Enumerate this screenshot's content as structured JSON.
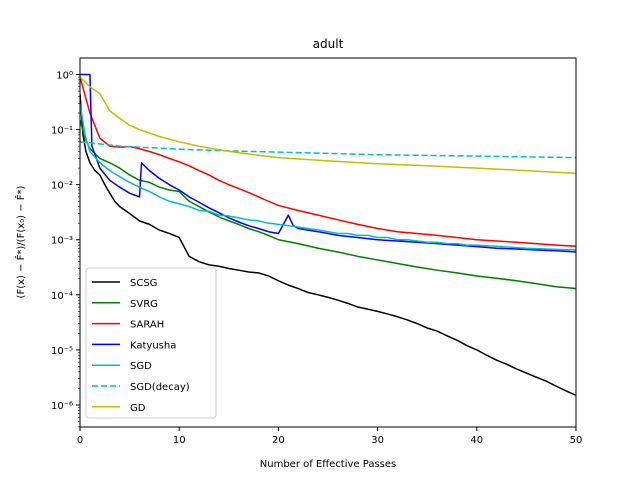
{
  "chart_data": {
    "type": "line",
    "title": "adult",
    "xlabel": "Number of Effective Passes",
    "ylabel": "(F(x) − F̂*)/(F(x₀) − F̂*)",
    "xlim": [
      0,
      50
    ],
    "ylim_log10": [
      -6.4,
      0.3
    ],
    "yscale": "log",
    "x_ticks": [
      0,
      10,
      20,
      30,
      40,
      50
    ],
    "x_tick_labels": [
      "0",
      "10",
      "20",
      "30",
      "40",
      "50"
    ],
    "y_ticks_log10": [
      -6,
      -5,
      -4,
      -3,
      -2,
      -1,
      0
    ],
    "y_tick_labels": [
      "10⁻⁶",
      "10⁻⁵",
      "10⁻⁴",
      "10⁻³",
      "10⁻²",
      "10⁻¹",
      "10⁰"
    ],
    "legend_position": "lower-left",
    "series": [
      {
        "name": "SCSG",
        "color": "#000000",
        "dash": "solid",
        "points": [
          [
            0,
            0.45
          ],
          [
            0.3,
            0.08
          ],
          [
            0.6,
            0.04
          ],
          [
            1,
            0.025
          ],
          [
            1.5,
            0.018
          ],
          [
            2,
            0.015
          ],
          [
            2.5,
            0.01
          ],
          [
            3,
            0.007
          ],
          [
            3.5,
            0.005
          ],
          [
            4,
            0.004
          ],
          [
            5,
            0.003
          ],
          [
            6,
            0.0022
          ],
          [
            7,
            0.0019
          ],
          [
            8,
            0.0015
          ],
          [
            9,
            0.0013
          ],
          [
            10,
            0.0011
          ],
          [
            11,
            0.0005
          ],
          [
            12,
            0.0004
          ],
          [
            13,
            0.00035
          ],
          [
            14,
            0.00033
          ],
          [
            15,
            0.0003
          ],
          [
            16,
            0.00028
          ],
          [
            17,
            0.00026
          ],
          [
            18,
            0.00025
          ],
          [
            19,
            0.00022
          ],
          [
            20,
            0.00018
          ],
          [
            21,
            0.00015
          ],
          [
            22,
            0.00013
          ],
          [
            23,
            0.00011
          ],
          [
            24,
            0.0001
          ],
          [
            25,
            9e-05
          ],
          [
            26,
            8e-05
          ],
          [
            27,
            7e-05
          ],
          [
            28,
            6e-05
          ],
          [
            29,
            5.5e-05
          ],
          [
            30,
            5e-05
          ],
          [
            31,
            4.5e-05
          ],
          [
            32,
            4e-05
          ],
          [
            33,
            3.5e-05
          ],
          [
            34,
            3e-05
          ],
          [
            35,
            2.5e-05
          ],
          [
            36,
            2.2e-05
          ],
          [
            37,
            1.8e-05
          ],
          [
            38,
            1.5e-05
          ],
          [
            39,
            1.2e-05
          ],
          [
            40,
            1e-05
          ],
          [
            41,
            8e-06
          ],
          [
            42,
            6.5e-06
          ],
          [
            43,
            5.5e-06
          ],
          [
            44,
            4.5e-06
          ],
          [
            45,
            3.8e-06
          ],
          [
            46,
            3.2e-06
          ],
          [
            47,
            2.7e-06
          ],
          [
            48,
            2.2e-06
          ],
          [
            49,
            1.8e-06
          ],
          [
            50,
            1.5e-06
          ]
        ]
      },
      {
        "name": "SVRG",
        "color": "#008000",
        "dash": "solid",
        "points": [
          [
            0,
            0.15
          ],
          [
            0.5,
            0.07
          ],
          [
            1,
            0.045
          ],
          [
            2,
            0.03
          ],
          [
            3,
            0.025
          ],
          [
            4,
            0.02
          ],
          [
            5,
            0.015
          ],
          [
            6,
            0.012
          ],
          [
            7,
            0.011
          ],
          [
            8,
            0.009
          ],
          [
            9,
            0.008
          ],
          [
            10,
            0.0075
          ],
          [
            11,
            0.005
          ],
          [
            12,
            0.004
          ],
          [
            13,
            0.0032
          ],
          [
            14,
            0.0026
          ],
          [
            15,
            0.0022
          ],
          [
            16,
            0.0019
          ],
          [
            17,
            0.0016
          ],
          [
            18,
            0.0014
          ],
          [
            19,
            0.0012
          ],
          [
            20,
            0.001
          ],
          [
            22,
            0.00085
          ],
          [
            24,
            0.0007
          ],
          [
            26,
            0.0006
          ],
          [
            28,
            0.0005
          ],
          [
            30,
            0.00043
          ],
          [
            32,
            0.00037
          ],
          [
            34,
            0.00032
          ],
          [
            36,
            0.00028
          ],
          [
            38,
            0.00025
          ],
          [
            40,
            0.00022
          ],
          [
            42,
            0.0002
          ],
          [
            44,
            0.00018
          ],
          [
            46,
            0.00016
          ],
          [
            48,
            0.00014
          ],
          [
            50,
            0.00013
          ]
        ]
      },
      {
        "name": "SARAH",
        "color": "#ff0000",
        "dash": "solid",
        "points": [
          [
            0,
            0.9
          ],
          [
            1,
            0.2
          ],
          [
            2,
            0.07
          ],
          [
            3,
            0.05
          ],
          [
            4,
            0.048
          ],
          [
            5,
            0.049
          ],
          [
            6,
            0.045
          ],
          [
            7,
            0.04
          ],
          [
            8,
            0.035
          ],
          [
            9,
            0.03
          ],
          [
            10,
            0.026
          ],
          [
            11,
            0.022
          ],
          [
            12,
            0.018
          ],
          [
            13,
            0.015
          ],
          [
            14,
            0.012
          ],
          [
            15,
            0.01
          ],
          [
            16,
            0.0085
          ],
          [
            17,
            0.0072
          ],
          [
            18,
            0.006
          ],
          [
            19,
            0.005
          ],
          [
            20,
            0.0042
          ],
          [
            22,
            0.0034
          ],
          [
            24,
            0.0028
          ],
          [
            26,
            0.0023
          ],
          [
            28,
            0.0019
          ],
          [
            30,
            0.0016
          ],
          [
            32,
            0.0014
          ],
          [
            34,
            0.0013
          ],
          [
            36,
            0.0012
          ],
          [
            38,
            0.0011
          ],
          [
            40,
            0.001
          ],
          [
            42,
            0.00095
          ],
          [
            44,
            0.0009
          ],
          [
            46,
            0.00085
          ],
          [
            48,
            0.0008
          ],
          [
            50,
            0.00076
          ]
        ]
      },
      {
        "name": "Katyusha",
        "color": "#0000ff",
        "dash": "solid",
        "points": [
          [
            0,
            1
          ],
          [
            1,
            1
          ],
          [
            1.2,
            0.05
          ],
          [
            2,
            0.02
          ],
          [
            3,
            0.012
          ],
          [
            4,
            0.009
          ],
          [
            5,
            0.007
          ],
          [
            6,
            0.006
          ],
          [
            6.2,
            0.025
          ],
          [
            7,
            0.018
          ],
          [
            8,
            0.013
          ],
          [
            9,
            0.01
          ],
          [
            10,
            0.008
          ],
          [
            11,
            0.006
          ],
          [
            12,
            0.0048
          ],
          [
            13,
            0.0038
          ],
          [
            14,
            0.0031
          ],
          [
            15,
            0.0025
          ],
          [
            16,
            0.0021
          ],
          [
            17,
            0.0018
          ],
          [
            18,
            0.0016
          ],
          [
            19,
            0.0014
          ],
          [
            20,
            0.0013
          ],
          [
            21,
            0.0028
          ],
          [
            21.5,
            0.0018
          ],
          [
            22,
            0.0016
          ],
          [
            24,
            0.0014
          ],
          [
            26,
            0.0012
          ],
          [
            28,
            0.0011
          ],
          [
            30,
            0.001
          ],
          [
            32,
            0.00095
          ],
          [
            34,
            0.0009
          ],
          [
            36,
            0.00085
          ],
          [
            38,
            0.0008
          ],
          [
            40,
            0.00075
          ],
          [
            42,
            0.0007
          ],
          [
            44,
            0.00068
          ],
          [
            46,
            0.00065
          ],
          [
            48,
            0.00063
          ],
          [
            50,
            0.0006
          ]
        ]
      },
      {
        "name": "SGD",
        "color": "#00bfbf",
        "dash": "solid",
        "points": [
          [
            0,
            0.3
          ],
          [
            0.5,
            0.08
          ],
          [
            1,
            0.04
          ],
          [
            2,
            0.025
          ],
          [
            3,
            0.018
          ],
          [
            4,
            0.014
          ],
          [
            5,
            0.011
          ],
          [
            6,
            0.009
          ],
          [
            7,
            0.0075
          ],
          [
            8,
            0.006
          ],
          [
            9,
            0.005
          ],
          [
            10,
            0.0045
          ],
          [
            11,
            0.004
          ],
          [
            12,
            0.0034
          ],
          [
            13,
            0.0033
          ],
          [
            14,
            0.0028
          ],
          [
            15,
            0.0027
          ],
          [
            16,
            0.0025
          ],
          [
            17,
            0.0023
          ],
          [
            18,
            0.0022
          ],
          [
            19,
            0.002
          ],
          [
            20,
            0.0019
          ],
          [
            21,
            0.0018
          ],
          [
            22,
            0.0017
          ],
          [
            23,
            0.0016
          ],
          [
            24,
            0.0015
          ],
          [
            25,
            0.0014
          ],
          [
            26,
            0.0013
          ],
          [
            27,
            0.0013
          ],
          [
            28,
            0.0012
          ],
          [
            29,
            0.0012
          ],
          [
            30,
            0.0011
          ],
          [
            31,
            0.0011
          ],
          [
            32,
            0.001
          ],
          [
            33,
            0.001
          ],
          [
            34,
            0.00095
          ],
          [
            35,
            0.0009
          ],
          [
            36,
            0.0009
          ],
          [
            37,
            0.00085
          ],
          [
            38,
            0.00085
          ],
          [
            39,
            0.0008
          ],
          [
            40,
            0.0008
          ],
          [
            41,
            0.00078
          ],
          [
            42,
            0.00076
          ],
          [
            43,
            0.00074
          ],
          [
            44,
            0.00072
          ],
          [
            45,
            0.0007
          ],
          [
            46,
            0.00069
          ],
          [
            47,
            0.00068
          ],
          [
            48,
            0.00067
          ],
          [
            49,
            0.00066
          ],
          [
            50,
            0.00065
          ]
        ]
      },
      {
        "name": "SGD(decay)",
        "color": "#00bfbf",
        "dash": "dashed",
        "points": [
          [
            0,
            0.06
          ],
          [
            2,
            0.055
          ],
          [
            4,
            0.05
          ],
          [
            6,
            0.048
          ],
          [
            8,
            0.046
          ],
          [
            10,
            0.044
          ],
          [
            15,
            0.041
          ],
          [
            20,
            0.039
          ],
          [
            25,
            0.037
          ],
          [
            30,
            0.035
          ],
          [
            35,
            0.034
          ],
          [
            40,
            0.033
          ],
          [
            45,
            0.032
          ],
          [
            50,
            0.031
          ]
        ]
      },
      {
        "name": "GD",
        "color": "#bfbf00",
        "dash": "solid",
        "points": [
          [
            0,
            0.9
          ],
          [
            1,
            0.6
          ],
          [
            2,
            0.45
          ],
          [
            3,
            0.22
          ],
          [
            4,
            0.16
          ],
          [
            5,
            0.12
          ],
          [
            6,
            0.1
          ],
          [
            8,
            0.075
          ],
          [
            10,
            0.06
          ],
          [
            12,
            0.05
          ],
          [
            14,
            0.043
          ],
          [
            16,
            0.038
          ],
          [
            18,
            0.034
          ],
          [
            20,
            0.031
          ],
          [
            25,
            0.027
          ],
          [
            30,
            0.024
          ],
          [
            35,
            0.022
          ],
          [
            40,
            0.02
          ],
          [
            45,
            0.018
          ],
          [
            50,
            0.016
          ]
        ]
      }
    ]
  }
}
